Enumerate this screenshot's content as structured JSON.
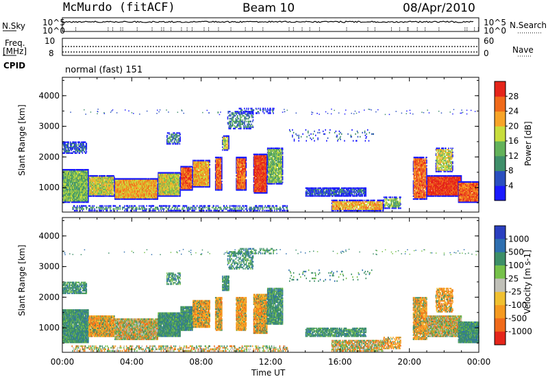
{
  "header": {
    "station": "McMurdo (fitACF)",
    "beam": "Beam 10",
    "date": "08/Apr/2010"
  },
  "aux": {
    "nsky_label": "N.Sky",
    "nsky_ticks": [
      "10^5",
      "10^0"
    ],
    "nsearch_label": "N.Search",
    "nsearch_ticks": [
      "10^5",
      "10^0"
    ],
    "freq_label": "Freq.",
    "freq_unit": "[MHz]",
    "freq_ticks": [
      "10",
      "8"
    ],
    "nave_label": "Nave",
    "nave_ticks": [
      "60",
      "0"
    ],
    "cpid_label": "CPID",
    "cpid_value": "normal (fast) 151"
  },
  "colors": {
    "power": [
      "#1a1aff",
      "#2a4fc0",
      "#3f8f6a",
      "#63b25a",
      "#c8dd3c",
      "#f7a428",
      "#f06a1a",
      "#e5251a"
    ],
    "velocity": [
      "#2a3fc0",
      "#2e6fb0",
      "#3d8f68",
      "#76c14a",
      "#c0c0b8",
      "#f0c030",
      "#f59a20",
      "#f06a1a",
      "#e5251a"
    ]
  },
  "chart_data": [
    {
      "type": "heatmap",
      "name": "power",
      "ylabel": "Slant Range [km]",
      "y_ticks": [
        "1000",
        "2000",
        "3000",
        "4000"
      ],
      "ylim": [
        200,
        4600
      ],
      "colorbar_label": "Power [dB]",
      "colorbar_ticks": [
        "4",
        "8",
        "12",
        "16",
        "20",
        "24",
        "28"
      ],
      "x_ticks": [
        "00:00",
        "04:00",
        "08:00",
        "12:00",
        "16:00",
        "20:00",
        "00:00"
      ],
      "xlim_hours": [
        0,
        24
      ]
    },
    {
      "type": "heatmap",
      "name": "velocity",
      "ylabel": "Slant Range [km]",
      "y_ticks": [
        "1000",
        "2000",
        "3000",
        "4000"
      ],
      "ylim": [
        200,
        4600
      ],
      "colorbar_label": "Velocity [m s-1]",
      "colorbar_ticks": [
        "1000",
        "500",
        "100",
        "25",
        "-25",
        "-100",
        "-500",
        "-1000"
      ],
      "x_ticks": [
        "00:00",
        "04:00",
        "08:00",
        "12:00",
        "16:00",
        "20:00",
        "00:00"
      ],
      "xlim_hours": [
        0,
        24
      ],
      "xlabel": "Time UT"
    }
  ]
}
